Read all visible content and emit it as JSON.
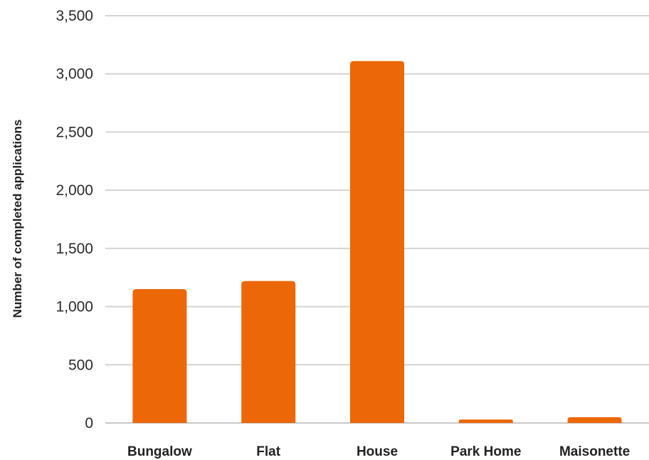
{
  "chart_data": {
    "type": "bar",
    "title": "",
    "xlabel": "",
    "ylabel": "Number of completed applications",
    "categories": [
      "Bungalow",
      "Flat",
      "House",
      "Park Home",
      "Maisonette"
    ],
    "values": [
      1150,
      1220,
      3110,
      30,
      50
    ],
    "ylim": [
      0,
      3500
    ],
    "yticks": [
      0,
      500,
      1000,
      1500,
      2000,
      2500,
      3000,
      3500
    ],
    "ytick_labels": [
      "0",
      "500",
      "1,000",
      "1,500",
      "2,000",
      "2,500",
      "3,000",
      "3,500"
    ],
    "grid": true,
    "legend": "none",
    "bar_color": "#ec6707"
  }
}
